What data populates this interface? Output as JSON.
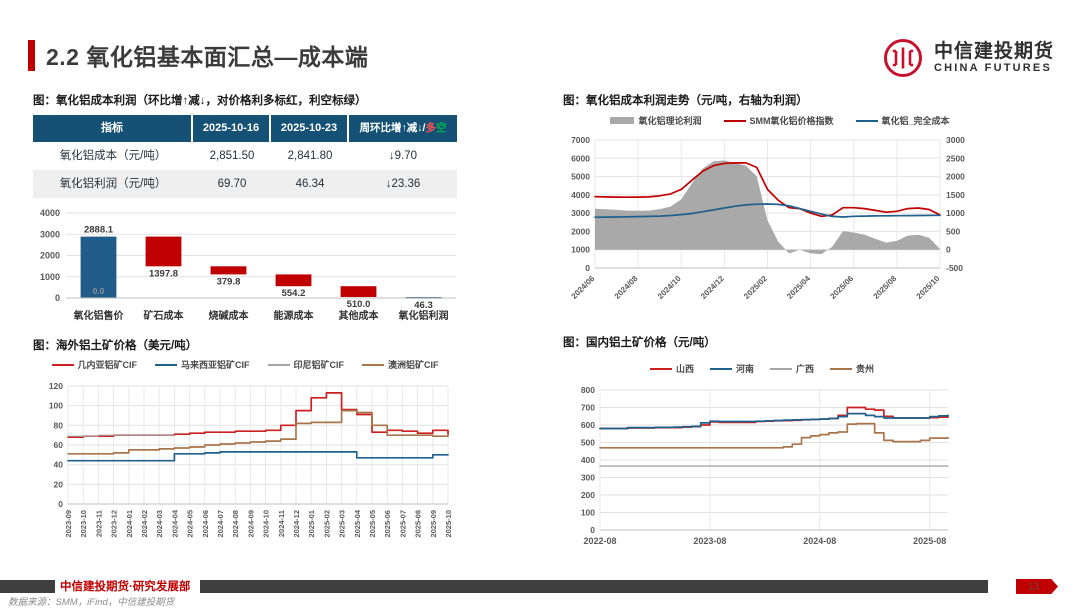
{
  "page": {
    "title": "2.2 氧化铝基本面汇总—成本端",
    "page_number": "13",
    "accent_color": "#C00000"
  },
  "logo": {
    "cn": "中信建投期货",
    "en": "CHINA FUTURES",
    "color": "#C8102E"
  },
  "footer": {
    "dept": "中信建投期货·研究发展部",
    "source": "数据来源：SMM，iFind，中信建投期货"
  },
  "table": {
    "title": "图：氧化铝成本利润（环比增↑减↓，对价格利多标红，利空标绿）",
    "headers": {
      "indicator": "指标",
      "date1": "2025-10-16",
      "date2": "2025-10-23"
    },
    "change_header": {
      "prefix": "周环比增↑减↓/",
      "bull": "多",
      "bear": "空"
    },
    "rows": [
      {
        "label": "氧化铝成本（元/吨）",
        "v1": "2,851.50",
        "v2": "2,841.80",
        "chg": "↓9.70"
      },
      {
        "label": "氧化铝利润（元/吨）",
        "v1": "69.70",
        "v2": "46.34",
        "chg": "↓23.36"
      }
    ]
  },
  "chart_data": [
    {
      "id": "cost_breakdown",
      "type": "bar",
      "subtype": "waterfall",
      "title": "图：氧化铝成本利润（环比增↑减↓，对价格利多标红，利空标绿）",
      "categories": [
        "氧化铝售价",
        "矿石成本",
        "烧碱成本",
        "能源成本",
        "其他成本",
        "氧化铝利润"
      ],
      "values": [
        2888.1,
        1397.8,
        379.8,
        554.2,
        510.0,
        46.3
      ],
      "segments": [
        [
          0,
          2888.1
        ],
        [
          1490.3,
          2888.1
        ],
        [
          1110.5,
          1490.3
        ],
        [
          556.3,
          1110.5
        ],
        [
          46.3,
          556.3
        ],
        [
          0,
          46.3
        ]
      ],
      "colors": [
        "#1F5C8A",
        "#C00000",
        "#C00000",
        "#C00000",
        "#C00000",
        "#1F5C8A"
      ],
      "labels": [
        "2888.1",
        "1397.8",
        "379.8",
        "554.2",
        "510.0",
        "46.3"
      ],
      "inner_label": {
        "category_index": 0,
        "text": "0.0"
      },
      "ylim": [
        0,
        4000
      ],
      "ytick_step": 1000
    },
    {
      "id": "overseas_bauxite",
      "type": "line",
      "title": "图：海外铝土矿价格（美元/吨）",
      "points": 26,
      "x_ticks": [
        "2023-09",
        "2023-10",
        "2023-11",
        "2023-12",
        "2024-01",
        "2024-02",
        "2024-03",
        "2024-04",
        "2024-05",
        "2024-06",
        "2024-07",
        "2024-08",
        "2024-09",
        "2024-10",
        "2024-11",
        "2024-12",
        "2025-01",
        "2025-02",
        "2025-03",
        "2025-04",
        "2025-05",
        "2025-06",
        "2025-07",
        "2025-08",
        "2025-09",
        "2025-10"
      ],
      "tick_indices": [
        0,
        1,
        2,
        3,
        4,
        5,
        6,
        7,
        8,
        9,
        10,
        11,
        12,
        13,
        14,
        15,
        16,
        17,
        18,
        19,
        20,
        21,
        22,
        23,
        24,
        25
      ],
      "left_axis": {
        "min": 0,
        "max": 120,
        "step": 20
      },
      "series": [
        {
          "name": "几内亚铝矿CIF",
          "color": "#CC1F1F",
          "render": "line",
          "values": [
            68,
            69,
            69,
            70,
            70,
            70,
            70,
            71,
            72,
            73,
            73,
            74,
            74,
            75,
            80,
            95,
            108,
            113,
            96,
            91,
            73,
            75,
            74,
            72,
            75,
            71
          ]
        },
        {
          "name": "马来西亚铝矿CIF",
          "color": "#1F618D",
          "render": "line",
          "values": [
            44,
            44,
            44,
            44,
            44,
            44,
            44,
            51,
            51,
            52,
            53,
            53,
            53,
            53,
            53,
            53,
            53,
            53,
            53,
            47,
            47,
            47,
            47,
            47,
            50,
            50
          ]
        },
        {
          "name": "印尼铝矿CIF",
          "color": "#A6A6A6",
          "render": "line",
          "width": 1.2,
          "values": [
            69,
            69,
            70,
            70,
            70,
            70,
            70,
            70,
            null,
            null,
            null,
            null,
            null,
            null,
            null,
            null,
            null,
            null,
            null,
            null,
            null,
            null,
            null,
            null,
            null,
            null
          ]
        },
        {
          "name": "澳洲铝矿CIF",
          "color": "#A9764B",
          "render": "line",
          "values": [
            51,
            51,
            51,
            52,
            55,
            55,
            56,
            57,
            58,
            60,
            61,
            62,
            63,
            64,
            66,
            82,
            83,
            83,
            95,
            93,
            80,
            70,
            70,
            70,
            69,
            70
          ]
        }
      ]
    },
    {
      "id": "cost_profit_trend",
      "type": "line",
      "title": "图：氧化铝成本利润走势（元/吨，右轴为利润）",
      "points": 33,
      "x_ticks": [
        "2024/06",
        "2024/08",
        "2024/10",
        "2024/12",
        "2025/02",
        "2025/04",
        "2025/06",
        "2025/08",
        "2025/10"
      ],
      "tick_indices": [
        0,
        4,
        8,
        12,
        16,
        20,
        24,
        28,
        32
      ],
      "left_axis": {
        "min": 0,
        "max": 7000,
        "step": 1000
      },
      "right_axis": {
        "min": -500,
        "max": 3000,
        "step": 500
      },
      "series": [
        {
          "name": "氧化铝理论利润",
          "color": "#A9A9A9",
          "render": "area",
          "axis": "right",
          "values": [
            1120,
            1105,
            1090,
            1070,
            1070,
            1070,
            1110,
            1180,
            1380,
            1820,
            2220,
            2420,
            2440,
            2370,
            2300,
            2010,
            800,
            220,
            -100,
            0,
            -100,
            -120,
            80,
            510,
            470,
            410,
            300,
            195,
            240,
            385,
            410,
            325,
            20
          ]
        },
        {
          "name": "SMM氧化铝价格指数",
          "color": "#C00000",
          "render": "line",
          "axis": "left",
          "values": [
            3900,
            3890,
            3880,
            3870,
            3880,
            3890,
            3950,
            4050,
            4300,
            4800,
            5300,
            5600,
            5720,
            5750,
            5750,
            5500,
            4300,
            3700,
            3300,
            3250,
            3000,
            2830,
            2900,
            3300,
            3300,
            3250,
            3150,
            3050,
            3100,
            3250,
            3280,
            3200,
            2900
          ]
        },
        {
          "name": "氧化铝_完全成本",
          "color": "#1F618D",
          "render": "line",
          "axis": "left",
          "values": [
            2780,
            2785,
            2790,
            2800,
            2810,
            2820,
            2840,
            2870,
            2920,
            2980,
            3080,
            3180,
            3280,
            3380,
            3450,
            3490,
            3500,
            3480,
            3400,
            3250,
            3100,
            2950,
            2820,
            2790,
            2830,
            2840,
            2850,
            2855,
            2860,
            2865,
            2870,
            2875,
            2880
          ]
        }
      ]
    },
    {
      "id": "domestic_bauxite",
      "type": "line",
      "title": "图：国内铝土矿价格（元/吨）",
      "points": 39,
      "x_ticks": [
        "2022-08",
        "2023-08",
        "2024-08",
        "2025-08"
      ],
      "tick_indices": [
        0,
        12,
        24,
        36
      ],
      "left_axis": {
        "min": 0,
        "max": 800,
        "step": 100
      },
      "series": [
        {
          "name": "山西",
          "color": "#CC1F1F",
          "render": "line",
          "values": [
            580,
            580,
            580,
            583,
            583,
            583,
            585,
            585,
            585,
            588,
            590,
            600,
            618,
            615,
            615,
            615,
            615,
            620,
            622,
            624,
            625,
            627,
            630,
            632,
            634,
            638,
            655,
            700,
            700,
            690,
            685,
            650,
            640,
            640,
            640,
            640,
            642,
            645,
            650
          ]
        },
        {
          "name": "河南",
          "color": "#1F618D",
          "render": "line",
          "values": [
            580,
            580,
            580,
            585,
            585,
            585,
            586,
            586,
            588,
            590,
            592,
            612,
            622,
            620,
            620,
            620,
            620,
            622,
            624,
            626,
            628,
            630,
            631,
            632,
            634,
            637,
            648,
            665,
            665,
            655,
            648,
            640,
            640,
            640,
            640,
            640,
            648,
            652,
            656
          ]
        },
        {
          "name": "广西",
          "color": "#A6A6A6",
          "render": "line",
          "width": 1.4,
          "values": [
            365,
            365,
            365,
            365,
            365,
            365,
            365,
            365,
            365,
            365,
            365,
            365,
            365,
            365,
            365,
            365,
            365,
            365,
            365,
            365,
            365,
            365,
            365,
            365,
            365,
            365,
            365,
            365,
            365,
            365,
            365,
            365,
            365,
            365,
            365,
            365,
            365,
            365,
            365
          ]
        },
        {
          "name": "贵州",
          "color": "#A9764B",
          "render": "line",
          "values": [
            470,
            470,
            470,
            470,
            470,
            470,
            470,
            470,
            470,
            470,
            470,
            470,
            470,
            470,
            470,
            470,
            470,
            470,
            470,
            470,
            475,
            490,
            528,
            538,
            545,
            555,
            560,
            605,
            608,
            608,
            555,
            512,
            505,
            505,
            505,
            512,
            525,
            525,
            528
          ]
        }
      ]
    }
  ]
}
